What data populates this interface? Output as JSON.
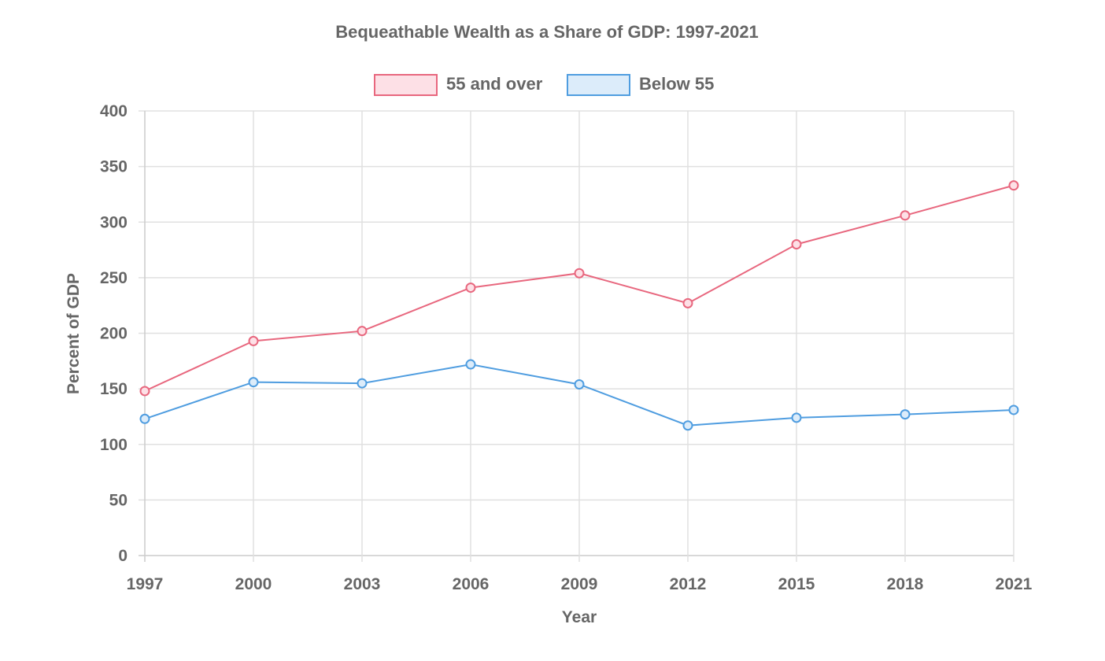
{
  "chart_data": {
    "type": "line",
    "title": "Bequeathable Wealth as a Share of GDP: 1997-2021",
    "xlabel": "Year",
    "ylabel": "Percent of GDP",
    "x": [
      "1997",
      "2000",
      "2003",
      "2006",
      "2009",
      "2012",
      "2015",
      "2018",
      "2021"
    ],
    "yticks": [
      "0",
      "50",
      "100",
      "150",
      "200",
      "250",
      "300",
      "350",
      "400"
    ],
    "ylim": [
      0,
      400
    ],
    "grid": true,
    "legend_position": "top-center",
    "series": [
      {
        "name": "55 and over",
        "values": [
          148,
          193,
          202,
          241,
          254,
          227,
          280,
          306,
          333
        ],
        "color": "#e8677e",
        "fill": "#fde0e6"
      },
      {
        "name": "Below 55",
        "values": [
          123,
          156,
          155,
          172,
          154,
          117,
          124,
          127,
          131
        ],
        "color": "#4f9de0",
        "fill": "#dcecfa"
      }
    ]
  }
}
